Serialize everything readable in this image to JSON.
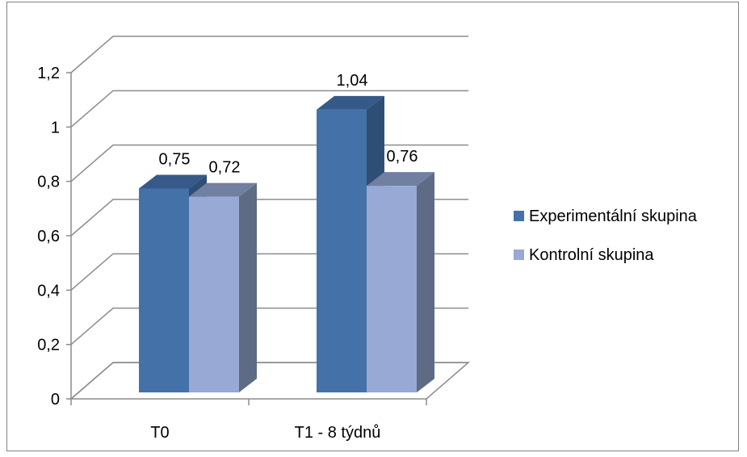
{
  "chart_data": {
    "type": "bar",
    "title": "",
    "xlabel": "",
    "ylabel": "",
    "categories": [
      "T0",
      "T1 - 8 týdnů"
    ],
    "series": [
      {
        "name": "Experimentální skupina",
        "values": [
          0.75,
          1.04
        ],
        "labels": [
          "0,75",
          "1,04"
        ],
        "color": "#4472A8",
        "side": "#2E4E75",
        "top": "#36598A"
      },
      {
        "name": "Kontrolní skupina",
        "values": [
          0.72,
          0.76
        ],
        "labels": [
          "0,72",
          "0,76"
        ],
        "color": "#97A9D4",
        "side": "#5E6B84",
        "top": "#7180A0"
      }
    ],
    "ylim": [
      0,
      1.2
    ],
    "yticks": [
      0,
      0.2,
      0.4,
      0.6,
      0.8,
      1,
      1.2
    ],
    "ytick_labels": [
      "0",
      "0,2",
      "0,4",
      "0,6",
      "0,8",
      "1",
      "1,2"
    ],
    "grid": true,
    "legend": "right",
    "three_d": true
  }
}
